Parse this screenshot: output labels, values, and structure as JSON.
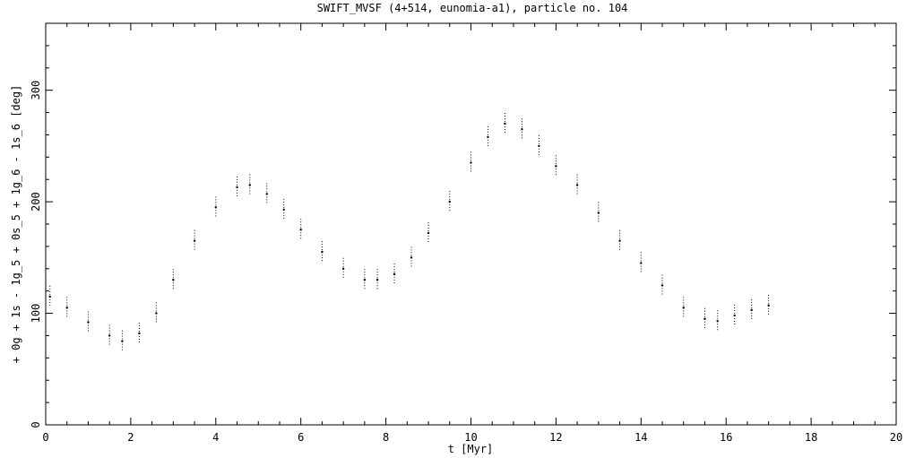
{
  "chart_data": {
    "type": "scatter",
    "title": "SWIFT_MVSF (4+514, eunomia-a1), particle no. 104",
    "xlabel": "t [Myr]",
    "ylabel": "+ 0g + 1s - 1g_5 + 0s_5 + 1g_6 - 1s_6 [deg]",
    "xlim": [
      0,
      20
    ],
    "ylim": [
      0,
      360
    ],
    "x_ticks": [
      0,
      2,
      4,
      6,
      8,
      10,
      12,
      14,
      16,
      18,
      20
    ],
    "y_ticks": [
      0,
      100,
      200,
      300
    ],
    "x_tick_labels": [
      "0",
      "2",
      "4",
      "6",
      "8",
      "10",
      "12",
      "14",
      "16",
      "18",
      "20"
    ],
    "y_tick_labels": [
      "0",
      "100",
      "200",
      "300"
    ],
    "grid": false,
    "marker_color": "#000000",
    "series": [
      {
        "x": [
          0.1,
          0.5,
          1.0,
          1.5,
          1.8,
          2.2,
          2.6,
          3.0,
          3.5,
          4.0,
          4.5,
          4.8,
          5.2,
          5.6,
          6.0,
          6.5,
          7.0,
          7.5,
          7.8,
          8.2,
          8.6,
          9.0,
          9.5,
          10.0,
          10.4,
          10.8,
          11.2,
          11.6,
          12.0,
          12.5,
          13.0,
          13.5,
          14.0,
          14.5,
          15.0,
          15.5,
          15.8,
          16.2,
          16.6,
          17.0
        ],
        "y": [
          115,
          105,
          92,
          80,
          75,
          82,
          100,
          130,
          165,
          195,
          213,
          215,
          207,
          193,
          175,
          155,
          140,
          130,
          130,
          135,
          150,
          172,
          200,
          235,
          258,
          270,
          265,
          250,
          232,
          215,
          190,
          165,
          145,
          125,
          105,
          95,
          93,
          98,
          103,
          107
        ]
      }
    ]
  }
}
